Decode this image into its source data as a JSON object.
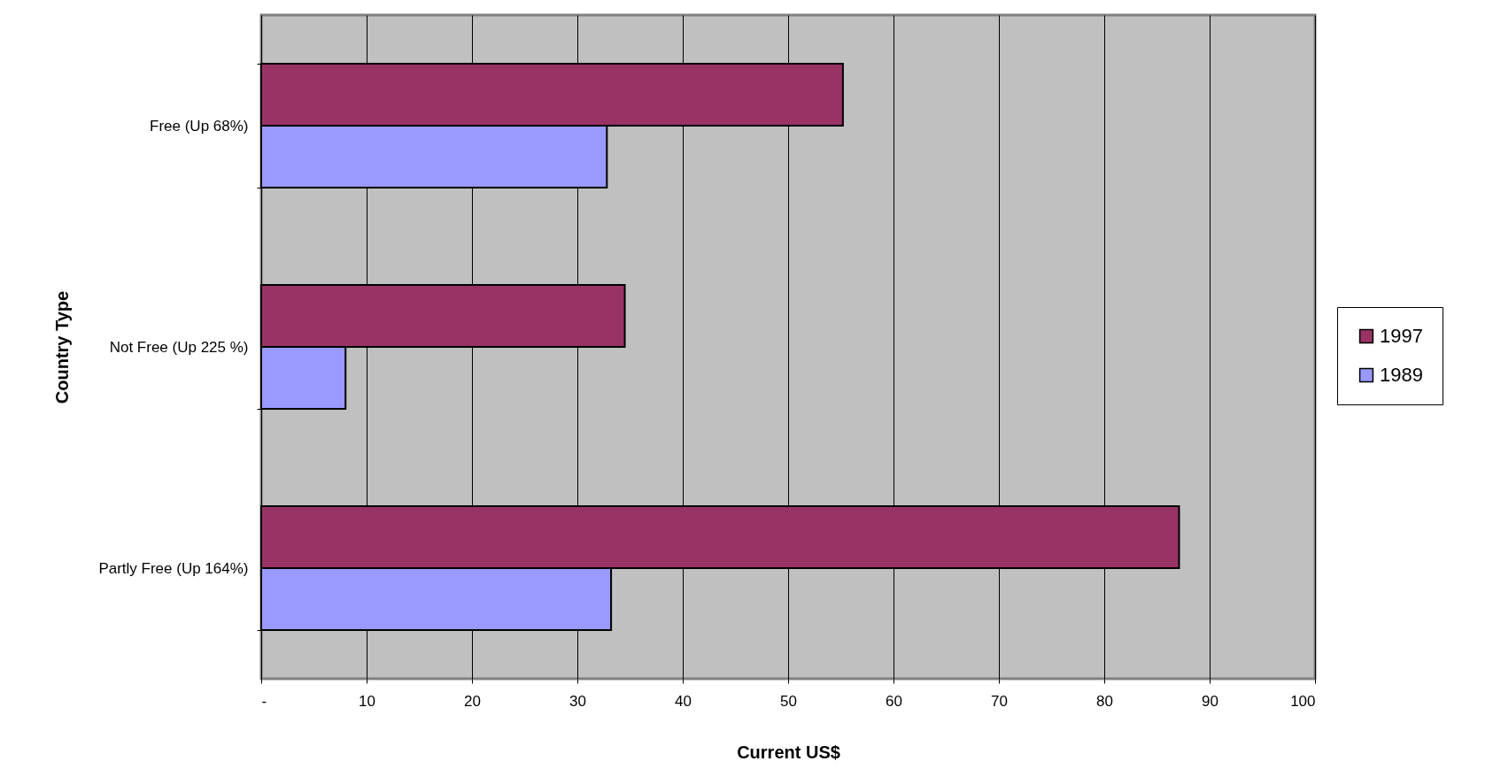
{
  "chart_data": {
    "type": "bar",
    "orientation": "horizontal",
    "xlabel": "Current US$",
    "ylabel": "Country Type",
    "categories": [
      "Free (Up 68%)",
      "Not Free (Up 225 %)",
      "Partly Free (Up 164%)"
    ],
    "series": [
      {
        "name": "1997",
        "color": "#993366",
        "values": [
          55.2,
          34.5,
          87.1
        ]
      },
      {
        "name": "1989",
        "color": "#9999ff",
        "values": [
          32.8,
          8.0,
          33.2
        ]
      }
    ],
    "xlim": [
      0,
      100
    ],
    "xticks": [
      {
        "value": 0,
        "label": "-"
      },
      10,
      20,
      30,
      40,
      50,
      60,
      70,
      80,
      90,
      100
    ],
    "grid": "x",
    "legend": "right"
  }
}
